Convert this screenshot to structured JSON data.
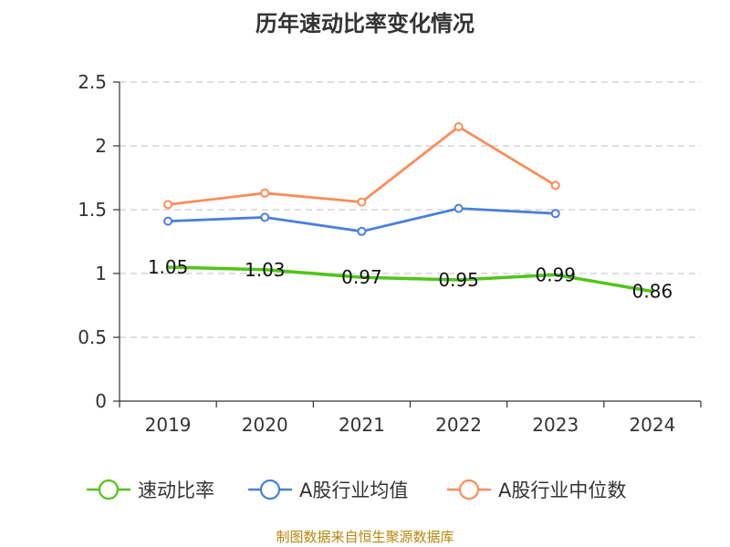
{
  "chart_data": {
    "type": "line",
    "title": "历年速动比率变化情况",
    "categories": [
      "2019",
      "2020",
      "2021",
      "2022",
      "2023",
      "2024"
    ],
    "ylim": [
      0,
      2.5
    ],
    "yticks": [
      "0",
      "0.5",
      "1",
      "1.5",
      "2",
      "2.5"
    ],
    "grid": true,
    "legend_position": "bottom",
    "series": [
      {
        "name": "速动比率",
        "color": "#52c41a",
        "values": [
          1.05,
          1.03,
          0.97,
          0.95,
          0.99,
          0.86
        ],
        "labels": [
          "1.05",
          "1.03",
          "0.97",
          "0.95",
          "0.99",
          "0.86"
        ],
        "markers": false
      },
      {
        "name": "A股行业均值",
        "color": "#4a7fdc",
        "values": [
          1.41,
          1.44,
          1.33,
          1.51,
          1.47,
          null
        ],
        "markers": true
      },
      {
        "name": "A股行业中位数",
        "color": "#fc8c5a",
        "values": [
          1.54,
          1.63,
          1.56,
          2.15,
          1.69,
          null
        ],
        "markers": true
      }
    ]
  },
  "source_note": "制图数据来自恒生聚源数据库"
}
